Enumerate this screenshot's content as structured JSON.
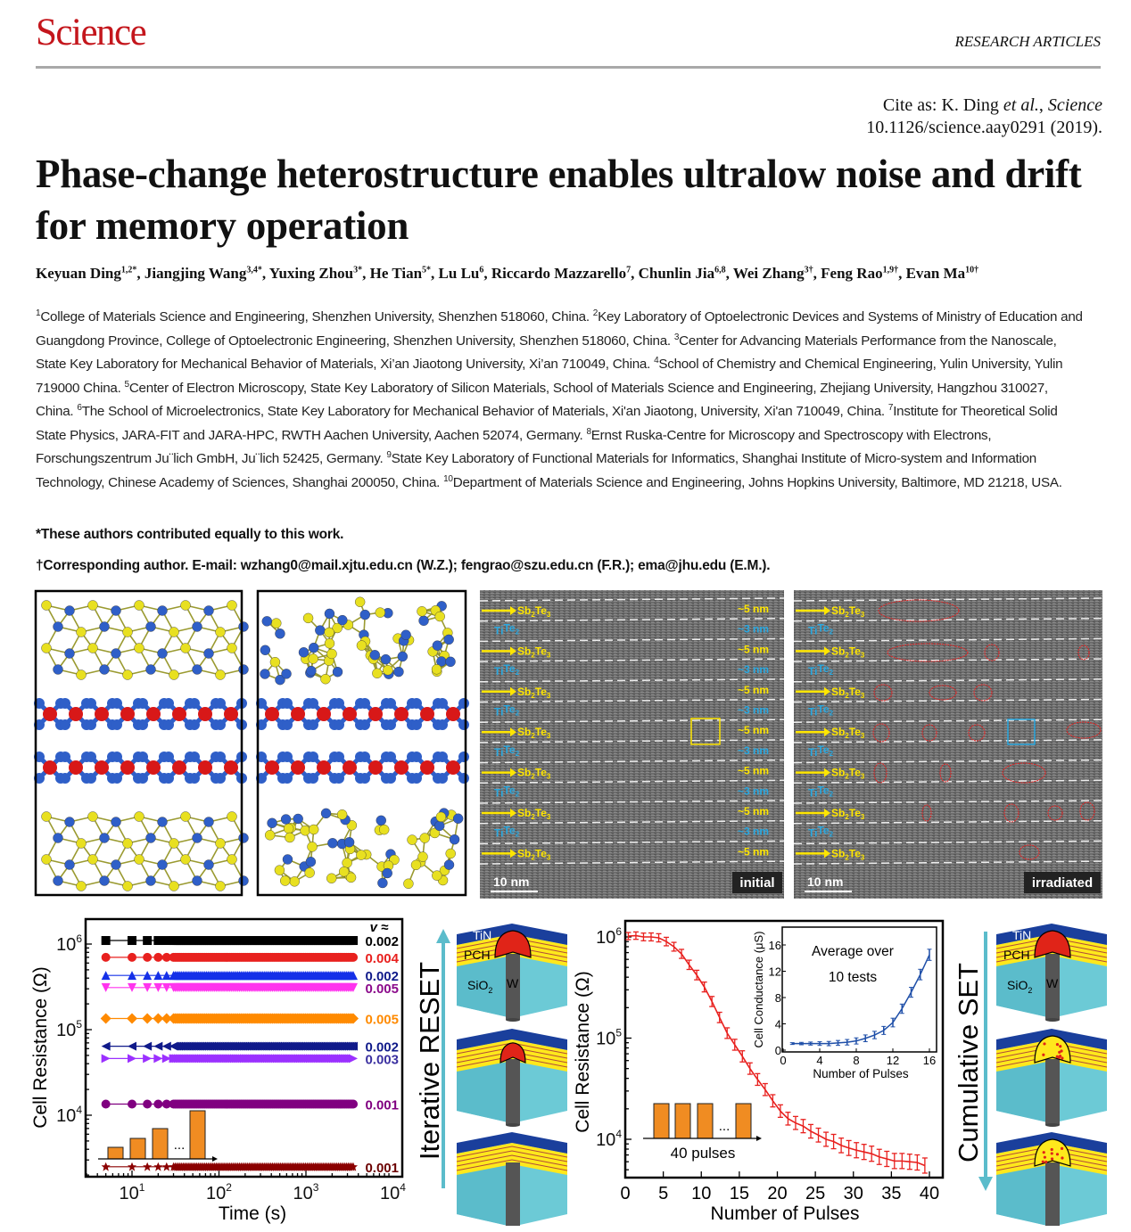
{
  "header": {
    "logo": "Science",
    "section": "RESEARCH ARTICLES",
    "colors": {
      "logo": "#c4161c",
      "rule": "#a9a9a9"
    }
  },
  "citation": {
    "line1_prefix": "Cite as: K. Ding ",
    "line1_etal": "et al.",
    "line1_sep": ", ",
    "line1_journal": "Science",
    "line2": "10.1126/science.aay0291 (2019)."
  },
  "title": "Phase-change heterostructure enables ultralow noise and drift for memory operation",
  "authors": [
    {
      "name": "Keyuan Ding",
      "sup": "1,2*"
    },
    {
      "name": "Jiangjing Wang",
      "sup": "3,4*"
    },
    {
      "name": "Yuxing Zhou",
      "sup": "3*"
    },
    {
      "name": "He Tian",
      "sup": "5*"
    },
    {
      "name": "Lu Lu",
      "sup": "6"
    },
    {
      "name": "Riccardo Mazzarello",
      "sup": "7"
    },
    {
      "name": "Chunlin Jia",
      "sup": "6,8"
    },
    {
      "name": "Wei Zhang",
      "sup": "3†"
    },
    {
      "name": "Feng Rao",
      "sup": "1,9†"
    },
    {
      "name": "Evan Ma",
      "sup": "10†"
    }
  ],
  "affiliations": [
    {
      "num": "1",
      "text": "College of Materials Science and Engineering, Shenzhen University, Shenzhen 518060, China. "
    },
    {
      "num": "2",
      "text": "Key Laboratory of Optoelectronic Devices and Systems of Ministry of Education and Guangdong Province, College of Optoelectronic Engineering, Shenzhen University, Shenzhen 518060, China. "
    },
    {
      "num": "3",
      "text": "Center for Advancing Materials Performance from the Nanoscale, State Key Laboratory for Mechanical Behavior of Materials, Xi’an Jiaotong University, Xi’an 710049, China. "
    },
    {
      "num": "4",
      "text": "School of Chemistry and Chemical Engineering, Yulin University, Yulin 719000 China. "
    },
    {
      "num": "5",
      "text": "Center of Electron Microscopy, State Key Laboratory of Silicon Materials, School of Materials Science and Engineering, Zhejiang University, Hangzhou 310027, China. "
    },
    {
      "num": "6",
      "text": "The School of Microelectronics, State Key Laboratory for Mechanical Behavior of Materials, Xi'an Jiaotong, University, Xi'an 710049, China. "
    },
    {
      "num": "7",
      "text": "Institute for Theoretical Solid State Physics, JARA-FIT and JARA-HPC, RWTH Aachen University, Aachen 52074, Germany. "
    },
    {
      "num": "8",
      "text": "Ernst Ruska-Centre for Microscopy and Spectroscopy with Electrons, Forschungszentrum Ju¨lich GmbH, Ju¨lich 52425, Germany. "
    },
    {
      "num": "9",
      "text": "State Key Laboratory of Functional Materials for Informatics, Shanghai Institute of Micro-system and Information Technology, Chinese Academy of Sciences, Shanghai 200050, China. "
    },
    {
      "num": "10",
      "text": "Department of Materials Science and Engineering, Johns Hopkins University, Baltimore, MD 21218, USA."
    }
  ],
  "notes": {
    "equal": "*These authors contributed equally to this work.",
    "corresponding": "†Corresponding author. E-mail: wzhang0@mail.xjtu.edu.cn (W.Z.); fengrao@szu.edu.cn (F.R.); ema@jhu.edu (E.M.)."
  },
  "figure": {
    "tem_layers": [
      {
        "label": "Sb2Te3",
        "main": "Sb",
        "sub1": "2",
        "mid": "Te",
        "sub2": "3",
        "thickness": "~5 nm",
        "color": "#ffe600"
      },
      {
        "label": "TiTe2",
        "main": "Ti",
        "sub1": "",
        "mid": "Te",
        "sub2": "2",
        "thickness": "~3 nm",
        "color": "#29a8e0"
      }
    ],
    "tem_initial": {
      "scale": "10 nm",
      "tag": "initial"
    },
    "tem_irradiated": {
      "scale": "10 nm",
      "tag": "irradiated"
    },
    "device_labels": {
      "tin": "TiN",
      "pch": "PCH",
      "sio2": "SiO",
      "sio2_sub": "2",
      "w": "W"
    },
    "reset_label": "Iterative RESET",
    "set_label": "Cumulative SET"
  },
  "chart_data": [
    {
      "type": "scatter",
      "xlabel": "Time (s)",
      "ylabel": "Cell Resistance (Ω)",
      "xscale": "log",
      "yscale": "log",
      "xlim": [
        3,
        10000
      ],
      "ylim": [
        1900,
        1950000
      ],
      "xticks": [
        {
          "base": "10",
          "exp": "1"
        },
        {
          "base": "10",
          "exp": "2"
        },
        {
          "base": "10",
          "exp": "3"
        },
        {
          "base": "10",
          "exp": "4"
        }
      ],
      "yticks": [
        {
          "base": "10",
          "exp": "6"
        },
        {
          "base": "10",
          "exp": "5"
        },
        {
          "base": "10",
          "exp": "4"
        }
      ],
      "legend_header": "v ≈",
      "time_range": [
        5,
        3500
      ],
      "series": [
        {
          "resistance": 1100000,
          "drift": "0.002",
          "color": "#000000",
          "label_color": "#000000",
          "marker": "square"
        },
        {
          "resistance": 700000,
          "drift": "0.004",
          "color": "#e8201e",
          "label_color": "#e8201e",
          "marker": "circle"
        },
        {
          "resistance": 430000,
          "drift": "0.002",
          "color": "#1530e8",
          "label_color": "#101a8a",
          "marker": "triangle-up"
        },
        {
          "resistance": 310000,
          "drift": "0.005",
          "color": "#ff33ee",
          "label_color": "#8b0a8b",
          "marker": "triangle-down"
        },
        {
          "resistance": 135000,
          "drift": "0.005",
          "color": "#ff8a00",
          "label_color": "#ff8a00",
          "marker": "diamond"
        },
        {
          "resistance": 64000,
          "drift": "0.002",
          "color": "#101a8a",
          "label_color": "#101a8a",
          "marker": "triangle-left"
        },
        {
          "resistance": 46000,
          "drift": "0.003",
          "color": "#9b30ff",
          "label_color": "#3a2fa0",
          "marker": "triangle-right"
        },
        {
          "resistance": 13500,
          "drift": "0.001",
          "color": "#800080",
          "label_color": "#800080",
          "marker": "hexagon"
        },
        {
          "resistance": 2500,
          "drift": "0.001",
          "color": "#8b0000",
          "label_color": "#6b0000",
          "marker": "star"
        }
      ],
      "inset": {
        "type": "pulse-train",
        "bar_color": "#f08c22",
        "ellipsis": "..."
      }
    },
    {
      "type": "line",
      "xlabel": "Number of Pulses",
      "ylabel": "Cell Resistance (Ω)",
      "yscale": "log",
      "xlim": [
        0,
        40
      ],
      "ylim": [
        4000,
        1350000
      ],
      "xticks": [
        "0",
        "5",
        "10",
        "15",
        "20",
        "25",
        "30",
        "35",
        "40"
      ],
      "yticks": [
        {
          "base": "10",
          "exp": "6"
        },
        {
          "base": "10",
          "exp": "5"
        },
        {
          "base": "10",
          "exp": "4"
        }
      ],
      "color": "#e8201e",
      "x": [
        1,
        2,
        3,
        4,
        5,
        6,
        7,
        8,
        9,
        10,
        11,
        12,
        13,
        14,
        15,
        16,
        17,
        18,
        19,
        20,
        21,
        22,
        23,
        24,
        25,
        26,
        27,
        28,
        29,
        30,
        31,
        32,
        33,
        34,
        35,
        36,
        37,
        38,
        39,
        40
      ],
      "y": [
        1020000,
        1030000,
        1000000,
        1000000,
        980000,
        900000,
        800000,
        680000,
        530000,
        420000,
        320000,
        230000,
        160000,
        112000,
        86000,
        66000,
        50000,
        39000,
        31000,
        24000,
        19000,
        16000,
        14500,
        13500,
        12000,
        11000,
        10000,
        9500,
        8700,
        8200,
        7800,
        7500,
        7200,
        6700,
        6400,
        6100,
        6100,
        6000,
        5900,
        5500
      ],
      "pulse_label": "40 pulses",
      "pulse_bar_color": "#f08c22",
      "ellipsis": "...",
      "inset": {
        "type": "line",
        "xlabel": "Number of Pulses",
        "ylabel": "Cell Conductance (μS)",
        "xlim": [
          0,
          17
        ],
        "ylim": [
          0,
          17
        ],
        "xticks": [
          "0",
          "4",
          "8",
          "12",
          "16"
        ],
        "yticks": [
          "0",
          "4",
          "8",
          "12",
          "16"
        ],
        "annotation": [
          "Average over",
          "10 tests"
        ],
        "color": "#1f4fa8",
        "x": [
          1,
          2,
          3,
          4,
          5,
          6,
          7,
          8,
          9,
          10,
          11,
          12,
          13,
          14,
          15,
          16
        ],
        "y": [
          1.0,
          1.0,
          1.0,
          1.0,
          1.0,
          1.1,
          1.2,
          1.4,
          1.8,
          2.3,
          3.0,
          4.2,
          6.3,
          8.8,
          11.5,
          14.5
        ]
      }
    }
  ]
}
